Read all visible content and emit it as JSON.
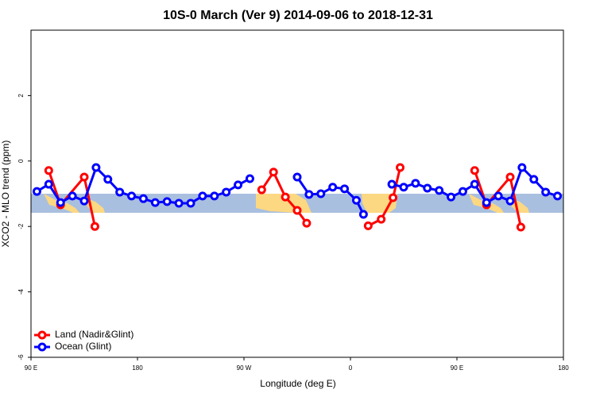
{
  "chart_data": {
    "type": "line",
    "title": "10S-0 March (Ver 9)   2014-09-06 to 2018-12-31",
    "xlabel": "Longitude (deg E)",
    "ylabel": "XCO2 - MLO trend (ppm)",
    "xlim": [
      90,
      540
    ],
    "ylim": [
      -6,
      4
    ],
    "xticks": [
      {
        "value": 90,
        "label": "90 E"
      },
      180,
      {
        "value": 270,
        "label": "90 W"
      },
      {
        "value": 360,
        "label": "0"
      },
      {
        "value": 450,
        "label": "90 E"
      },
      {
        "value": 540,
        "label": "180"
      }
    ],
    "yticks": [
      -6,
      -4,
      -2,
      0,
      2
    ],
    "legend": "bottom-left",
    "series": [
      {
        "name": "Land (Nadir&Glint)",
        "color": "#ff0000",
        "x": [
          105,
          115,
          135,
          144,
          null,
          285,
          295,
          305,
          315,
          323,
          null,
          375,
          386,
          396,
          402,
          null,
          465,
          475,
          495,
          504
        ],
        "values": [
          -0.29,
          -1.34,
          -0.49,
          -2.0,
          null,
          -0.88,
          -0.34,
          -1.1,
          -1.51,
          -1.9,
          null,
          -1.98,
          -1.78,
          -1.12,
          -0.2,
          null,
          -0.29,
          -1.34,
          -0.49,
          -2.02
        ]
      },
      {
        "name": "Ocean (Glint)",
        "color": "#0000ff",
        "x": [
          95,
          105,
          115,
          125,
          135,
          145,
          155,
          165,
          175,
          185,
          195,
          205,
          215,
          225,
          235,
          245,
          255,
          265,
          275,
          null,
          315,
          325,
          335,
          345,
          355,
          365,
          371,
          null,
          395,
          405,
          415,
          425,
          435,
          445,
          455,
          465,
          475,
          485,
          495,
          505,
          515,
          525,
          535
        ],
        "values": [
          -0.93,
          -0.71,
          -1.27,
          -1.07,
          -1.22,
          -0.2,
          -0.56,
          -0.95,
          -1.07,
          -1.15,
          -1.27,
          -1.24,
          -1.29,
          -1.29,
          -1.07,
          -1.07,
          -0.95,
          -0.73,
          -0.54,
          null,
          -0.49,
          -1.02,
          -1.0,
          -0.8,
          -0.85,
          -1.2,
          -1.63,
          null,
          -0.71,
          -0.8,
          -0.68,
          -0.83,
          -0.9,
          -1.1,
          -0.93,
          -0.71,
          -1.27,
          -1.07,
          -1.22,
          -0.2,
          -0.56,
          -0.95,
          -1.07
        ]
      }
    ]
  }
}
